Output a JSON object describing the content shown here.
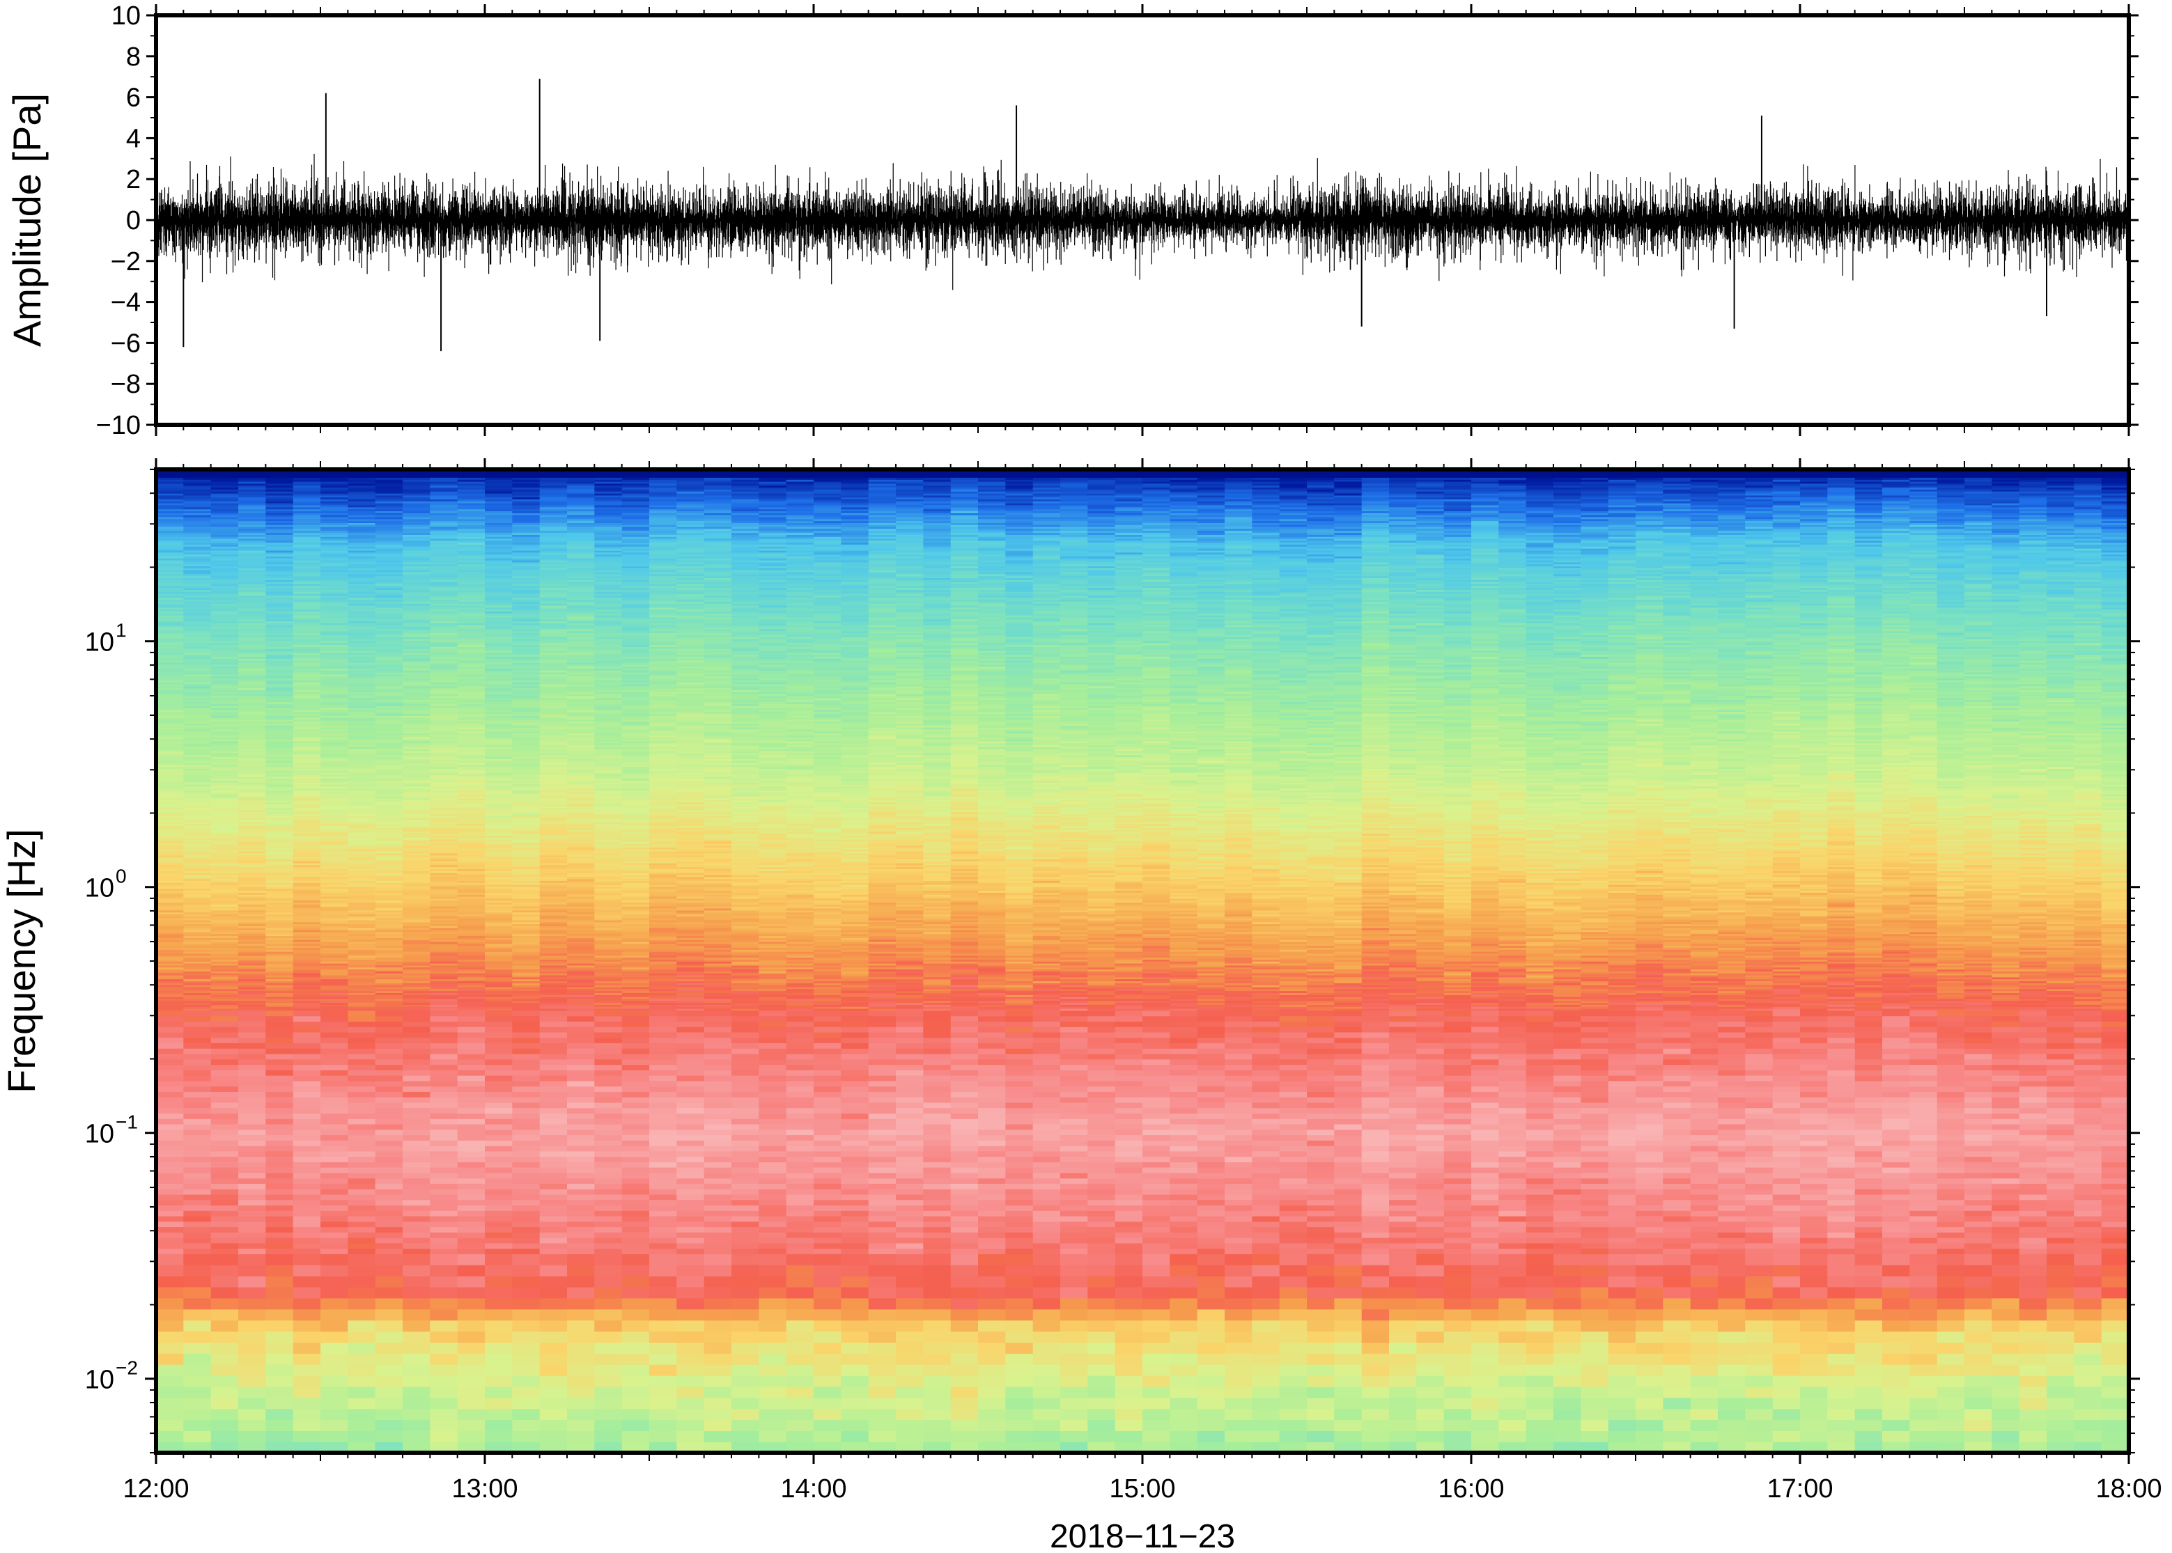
{
  "chart_data": [
    {
      "type": "line",
      "panel": "waveform",
      "ylabel": "Amplitude [Pa]",
      "xlabel": "",
      "ylim": [
        -10,
        10
      ],
      "yticks": [
        -10,
        -8,
        -6,
        -4,
        -2,
        0,
        2,
        4,
        6,
        8,
        10
      ],
      "ytick_labels": [
        "−10",
        "−8",
        "−6",
        "−4",
        "−2",
        "0",
        "2",
        "4",
        "6",
        "8",
        "10"
      ],
      "xlim": [
        "12:00",
        "18:00"
      ],
      "series": [
        {
          "color": "#000000",
          "envelope_x": [
            "12:00",
            "12:20",
            "12:40",
            "13:00",
            "13:20",
            "13:40",
            "14:00",
            "14:20",
            "14:40",
            "15:00",
            "15:20",
            "15:40",
            "16:00",
            "16:20",
            "16:40",
            "17:00",
            "17:20",
            "17:40",
            "18:00"
          ],
          "envelope_pos": [
            3.0,
            3.4,
            3.1,
            2.9,
            3.3,
            2.9,
            3.1,
            3.0,
            3.2,
            2.5,
            2.2,
            3.6,
            3.0,
            2.8,
            2.8,
            3.0,
            2.6,
            3.4,
            3.0
          ],
          "envelope_neg": [
            -3.3,
            -3.5,
            -3.2,
            -3.0,
            -3.5,
            -3.1,
            -3.2,
            -3.0,
            -3.3,
            -2.6,
            -2.3,
            -3.6,
            -3.1,
            -2.9,
            -2.9,
            -3.0,
            -2.7,
            -3.4,
            -3.1
          ],
          "peaks": [
            {
              "x": "12:05",
              "y": -6.2
            },
            {
              "x": "12:31",
              "y": 6.2
            },
            {
              "x": "12:52",
              "y": -6.4
            },
            {
              "x": "13:10",
              "y": 6.9
            },
            {
              "x": "13:21",
              "y": -5.9
            },
            {
              "x": "14:37",
              "y": 5.6
            },
            {
              "x": "15:40",
              "y": -5.2
            },
            {
              "x": "16:53",
              "y": 5.1
            },
            {
              "x": "16:48",
              "y": -5.3
            },
            {
              "x": "17:45",
              "y": -4.7
            }
          ]
        }
      ]
    },
    {
      "type": "heatmap",
      "panel": "spectrogram",
      "ylabel": "Frequency [Hz]",
      "xlabel": "2018−11−23",
      "yscale": "log",
      "ylim": [
        0.005,
        50
      ],
      "yticks": [
        0.01,
        0.1,
        1,
        10
      ],
      "ytick_labels": [
        {
          "base": "10",
          "exp": "−2"
        },
        {
          "base": "10",
          "exp": "−1"
        },
        {
          "base": "10",
          "exp": "0"
        },
        {
          "base": "10",
          "exp": "1"
        }
      ],
      "xlim": [
        "12:00",
        "18:00"
      ],
      "xtick_labels": [
        "12:00",
        "13:00",
        "14:00",
        "15:00",
        "16:00",
        "17:00",
        "18:00"
      ],
      "colormap": [
        "#001a9e",
        "#1e6fe8",
        "#4fc8ea",
        "#78e0c4",
        "#a8ee9a",
        "#d9f28e",
        "#fad46a",
        "#f6a24e",
        "#f5604f",
        "#f88a8a",
        "#f9b3b3"
      ],
      "time_bins": 72,
      "time_bin_minutes": 5,
      "bands_low_to_high_hz": [
        {
          "f": 0.005,
          "level": 4
        },
        {
          "f": 0.01,
          "level": 5
        },
        {
          "f": 0.016,
          "level": 6
        },
        {
          "f": 0.022,
          "level": 8
        },
        {
          "f": 0.035,
          "level": 8.6
        },
        {
          "f": 0.1,
          "level": 9.6
        },
        {
          "f": 0.3,
          "level": 8.2
        },
        {
          "f": 0.5,
          "level": 7.3
        },
        {
          "f": 1.0,
          "level": 6.2
        },
        {
          "f": 3.0,
          "level": 4.6
        },
        {
          "f": 10.0,
          "level": 3.3
        },
        {
          "f": 25.0,
          "level": 2.0
        },
        {
          "f": 50.0,
          "level": 0
        }
      ]
    }
  ]
}
